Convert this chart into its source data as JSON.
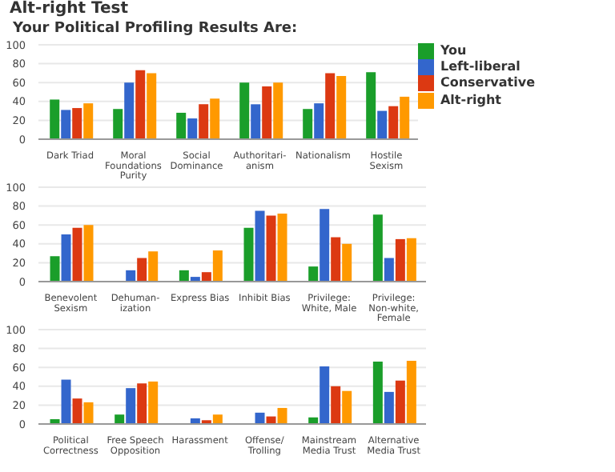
{
  "chart_data": [
    {
      "type": "bar",
      "title": "Alt-right Test",
      "subtitle": "Your Political Profiling Results Are:",
      "categories": [
        "Dark Triad",
        "Moral Foundations Purity",
        "Social Dominance",
        "Authoritari-anism",
        "Nationalism",
        "Hostile Sexism"
      ],
      "series": [
        {
          "name": "You",
          "color": "#1a9e2a",
          "values": [
            42,
            32,
            28,
            60,
            32,
            71
          ]
        },
        {
          "name": "Left-liberal",
          "color": "#3366cc",
          "values": [
            31,
            60,
            22,
            37,
            38,
            30
          ]
        },
        {
          "name": "Conservative",
          "color": "#dc3912",
          "values": [
            33,
            73,
            37,
            56,
            70,
            35
          ]
        },
        {
          "name": "Alt-right",
          "color": "#ff9900",
          "values": [
            38,
            70,
            43,
            60,
            67,
            45
          ]
        }
      ],
      "ylim": [
        0,
        100
      ],
      "yticks": [
        0,
        20,
        40,
        60,
        80,
        100
      ],
      "grid": "y",
      "legend": "right"
    },
    {
      "type": "bar",
      "categories": [
        "Benevolent Sexism",
        "Dehuman-ization",
        "Express Bias",
        "Inhibit Bias",
        "Privilege: White, Male",
        "Privilege: Non-white, Female"
      ],
      "series": [
        {
          "color": "#1a9e2a",
          "values": [
            27,
            0,
            12,
            57,
            16,
            71
          ]
        },
        {
          "color": "#3366cc",
          "values": [
            50,
            12,
            5,
            75,
            77,
            25
          ]
        },
        {
          "color": "#dc3912",
          "values": [
            57,
            25,
            10,
            70,
            47,
            45
          ]
        },
        {
          "color": "#ff9900",
          "values": [
            60,
            32,
            33,
            72,
            40,
            46
          ]
        }
      ],
      "ylim": [
        0,
        100
      ],
      "yticks": [
        0,
        20,
        40,
        60,
        80,
        100
      ],
      "grid": "y"
    },
    {
      "type": "bar",
      "categories": [
        "Political Correctness",
        "Free Speech Opposition",
        "Harassment",
        "Offense/ Trolling",
        "Mainstream Media Trust",
        "Alternative Media Trust"
      ],
      "series": [
        {
          "color": "#1a9e2a",
          "values": [
            5,
            10,
            0,
            0,
            7,
            66
          ]
        },
        {
          "color": "#3366cc",
          "values": [
            47,
            38,
            6,
            12,
            61,
            34
          ]
        },
        {
          "color": "#dc3912",
          "values": [
            27,
            43,
            4,
            8,
            40,
            46
          ]
        },
        {
          "color": "#ff9900",
          "values": [
            23,
            45,
            10,
            17,
            35,
            67
          ]
        }
      ],
      "ylim": [
        0,
        100
      ],
      "yticks": [
        0,
        20,
        40,
        60,
        80,
        100
      ],
      "grid": "y"
    }
  ]
}
